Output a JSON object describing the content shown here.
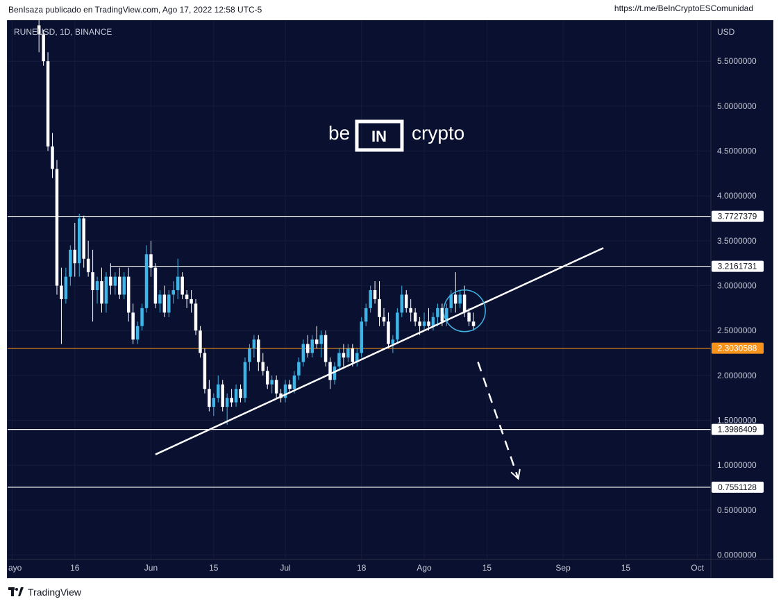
{
  "header": {
    "left_text": "BenIsaza publicado en TradingView.com, Ago 17, 2022 12:58 UTC-5",
    "right_text": "https://t.me/BeInCryptoESComunidad"
  },
  "footer": {
    "brand": "TradingView"
  },
  "watermark": {
    "left": "be",
    "middle": "IN",
    "right": "crypto"
  },
  "chart_data": {
    "type": "candlestick",
    "symbol_label": "RUNEUSD, 1D, BINANCE",
    "currency_label": "USD",
    "y_tick_labels": [
      "5.5000000",
      "5.0000000",
      "4.5000000",
      "4.0000000",
      "3.5000000",
      "3.0000000",
      "2.5000000",
      "2.0000000",
      "1.5000000",
      "1.0000000",
      "0.5000000",
      "0.0000000"
    ],
    "y_ticks": [
      5.5,
      5.0,
      4.5,
      4.0,
      3.5,
      3.0,
      2.5,
      2.0,
      1.5,
      1.0,
      0.5,
      0.0
    ],
    "x_tick_labels": [
      "ayo",
      "16",
      "Jun",
      "15",
      "Jul",
      "18",
      "Ago",
      "15",
      "Sep",
      "15",
      "Oct"
    ],
    "x_tick_days": [
      0,
      14,
      31,
      45,
      61,
      78,
      92,
      106,
      123,
      137,
      153
    ],
    "ylim": [
      -0.05,
      5.95
    ],
    "xlim": [
      -1,
      156
    ],
    "levels": [
      {
        "value": 3.7727379,
        "label": "3.7727379",
        "color": "#ffffff",
        "start_day": -1
      },
      {
        "value": 3.2161731,
        "label": "3.2161731",
        "color": "#ffffff",
        "start_day": 22
      },
      {
        "value": 2.3030588,
        "label": "2.3030588",
        "color": "#f7931a",
        "start_day": -1
      },
      {
        "value": 1.3986409,
        "label": "1.3986409",
        "color": "#ffffff",
        "start_day": -1
      },
      {
        "value": 0.7551128,
        "label": "0.7551128",
        "color": "#ffffff",
        "start_day": -1
      }
    ],
    "trendline": {
      "x1": 32,
      "y1": 1.12,
      "x2": 132,
      "y2": 3.42
    },
    "projection": {
      "x1": 104,
      "y1": 2.15,
      "x2": 113,
      "y2": 0.85
    },
    "highlight_circle": {
      "x": 101,
      "y": 2.72
    },
    "candles": [
      [
        6,
        5.9,
        6.0,
        5.6,
        5.8
      ],
      [
        7,
        5.8,
        5.85,
        5.45,
        5.5
      ],
      [
        8,
        5.5,
        5.6,
        4.5,
        4.55
      ],
      [
        9,
        4.55,
        4.7,
        4.2,
        4.3
      ],
      [
        10,
        4.3,
        4.4,
        2.9,
        3.0
      ],
      [
        11,
        3.0,
        3.2,
        2.35,
        2.85
      ],
      [
        12,
        2.85,
        3.2,
        2.8,
        3.1
      ],
      [
        13,
        3.1,
        3.45,
        3.0,
        3.4
      ],
      [
        14,
        3.4,
        3.7,
        3.1,
        3.25
      ],
      [
        15,
        3.25,
        3.8,
        3.1,
        3.75
      ],
      [
        16,
        3.75,
        3.78,
        3.2,
        3.3
      ],
      [
        17,
        3.3,
        3.5,
        3.1,
        3.15
      ],
      [
        18,
        3.15,
        3.4,
        2.6,
        2.95
      ],
      [
        19,
        2.95,
        3.1,
        2.8,
        3.05
      ],
      [
        20,
        3.05,
        3.2,
        2.7,
        2.8
      ],
      [
        21,
        2.8,
        3.15,
        2.7,
        3.1
      ],
      [
        22,
        3.1,
        3.25,
        2.9,
        3.0
      ],
      [
        23,
        3.0,
        3.15,
        2.9,
        3.1
      ],
      [
        24,
        3.1,
        3.2,
        2.85,
        2.9
      ],
      [
        25,
        2.9,
        3.15,
        2.85,
        3.1
      ],
      [
        26,
        3.1,
        3.2,
        2.6,
        2.7
      ],
      [
        27,
        2.7,
        2.8,
        2.35,
        2.4
      ],
      [
        28,
        2.4,
        2.6,
        2.35,
        2.55
      ],
      [
        29,
        2.55,
        2.8,
        2.5,
        2.75
      ],
      [
        30,
        2.75,
        3.45,
        2.7,
        3.35
      ],
      [
        31,
        3.35,
        3.5,
        3.1,
        3.2
      ],
      [
        32,
        3.2,
        3.25,
        2.75,
        2.8
      ],
      [
        33,
        2.8,
        2.95,
        2.7,
        2.9
      ],
      [
        34,
        2.9,
        3.0,
        2.65,
        2.7
      ],
      [
        35,
        2.7,
        2.95,
        2.65,
        2.9
      ],
      [
        36,
        2.9,
        3.05,
        2.8,
        2.95
      ],
      [
        37,
        2.95,
        3.3,
        2.85,
        3.1
      ],
      [
        38,
        3.1,
        3.15,
        2.85,
        2.9
      ],
      [
        39,
        2.9,
        2.95,
        2.75,
        2.85
      ],
      [
        40,
        2.85,
        2.95,
        2.7,
        2.8
      ],
      [
        41,
        2.8,
        2.85,
        2.45,
        2.5
      ],
      [
        42,
        2.5,
        2.55,
        2.2,
        2.25
      ],
      [
        43,
        2.25,
        2.3,
        1.8,
        1.85
      ],
      [
        44,
        1.85,
        1.95,
        1.6,
        1.65
      ],
      [
        45,
        1.65,
        1.8,
        1.55,
        1.75
      ],
      [
        46,
        1.75,
        2.0,
        1.7,
        1.9
      ],
      [
        47,
        1.9,
        1.95,
        1.6,
        1.65
      ],
      [
        48,
        1.65,
        1.8,
        1.45,
        1.75
      ],
      [
        49,
        1.75,
        1.85,
        1.65,
        1.7
      ],
      [
        50,
        1.7,
        1.9,
        1.65,
        1.85
      ],
      [
        51,
        1.85,
        1.9,
        1.7,
        1.75
      ],
      [
        52,
        1.75,
        2.2,
        1.7,
        2.15
      ],
      [
        53,
        2.15,
        2.35,
        2.05,
        2.3
      ],
      [
        54,
        2.3,
        2.45,
        2.2,
        2.4
      ],
      [
        55,
        2.4,
        2.45,
        2.05,
        2.15
      ],
      [
        56,
        2.15,
        2.25,
        2.0,
        2.05
      ],
      [
        57,
        2.05,
        2.1,
        1.85,
        1.9
      ],
      [
        58,
        1.9,
        2.0,
        1.8,
        1.95
      ],
      [
        59,
        1.95,
        2.0,
        1.75,
        1.8
      ],
      [
        60,
        1.8,
        1.85,
        1.7,
        1.75
      ],
      [
        61,
        1.75,
        1.95,
        1.7,
        1.9
      ],
      [
        62,
        1.9,
        1.95,
        1.8,
        1.85
      ],
      [
        63,
        1.85,
        2.05,
        1.8,
        2.0
      ],
      [
        64,
        2.0,
        2.2,
        1.95,
        2.15
      ],
      [
        65,
        2.15,
        2.4,
        2.1,
        2.35
      ],
      [
        66,
        2.35,
        2.45,
        2.2,
        2.25
      ],
      [
        67,
        2.25,
        2.45,
        2.2,
        2.4
      ],
      [
        68,
        2.4,
        2.55,
        2.3,
        2.35
      ],
      [
        69,
        2.35,
        2.5,
        2.2,
        2.45
      ],
      [
        70,
        2.45,
        2.5,
        2.1,
        2.15
      ],
      [
        71,
        2.15,
        2.2,
        1.85,
        1.95
      ],
      [
        72,
        1.95,
        2.15,
        1.9,
        2.1
      ],
      [
        73,
        2.1,
        2.3,
        2.05,
        2.25
      ],
      [
        74,
        2.25,
        2.35,
        2.1,
        2.2
      ],
      [
        75,
        2.2,
        2.35,
        2.15,
        2.3
      ],
      [
        76,
        2.3,
        2.35,
        2.1,
        2.15
      ],
      [
        77,
        2.15,
        2.3,
        2.1,
        2.25
      ],
      [
        78,
        2.25,
        2.65,
        2.2,
        2.6
      ],
      [
        79,
        2.6,
        2.8,
        2.55,
        2.75
      ],
      [
        80,
        2.75,
        3.0,
        2.7,
        2.95
      ],
      [
        81,
        2.95,
        3.05,
        2.8,
        2.85
      ],
      [
        82,
        2.85,
        3.05,
        2.55,
        2.65
      ],
      [
        83,
        2.65,
        2.75,
        2.55,
        2.6
      ],
      [
        84,
        2.6,
        2.7,
        2.3,
        2.35
      ],
      [
        85,
        2.35,
        2.45,
        2.25,
        2.4
      ],
      [
        86,
        2.4,
        2.75,
        2.35,
        2.7
      ],
      [
        87,
        2.7,
        3.0,
        2.65,
        2.9
      ],
      [
        88,
        2.9,
        2.95,
        2.7,
        2.75
      ],
      [
        89,
        2.75,
        2.85,
        2.6,
        2.7
      ],
      [
        90,
        2.7,
        2.75,
        2.55,
        2.6
      ],
      [
        91,
        2.6,
        2.65,
        2.45,
        2.55
      ],
      [
        92,
        2.55,
        2.7,
        2.5,
        2.6
      ],
      [
        93,
        2.6,
        2.75,
        2.5,
        2.55
      ],
      [
        94,
        2.55,
        2.7,
        2.5,
        2.65
      ],
      [
        95,
        2.65,
        2.8,
        2.55,
        2.75
      ],
      [
        96,
        2.75,
        2.8,
        2.55,
        2.6
      ],
      [
        97,
        2.6,
        2.8,
        2.55,
        2.75
      ],
      [
        98,
        2.75,
        2.95,
        2.7,
        2.9
      ],
      [
        99,
        2.9,
        3.15,
        2.7,
        2.8
      ],
      [
        100,
        2.8,
        2.95,
        2.75,
        2.9
      ],
      [
        101,
        2.9,
        3.0,
        2.65,
        2.7
      ],
      [
        102,
        2.7,
        2.75,
        2.55,
        2.6
      ],
      [
        103,
        2.6,
        2.7,
        2.5,
        2.55
      ]
    ]
  }
}
